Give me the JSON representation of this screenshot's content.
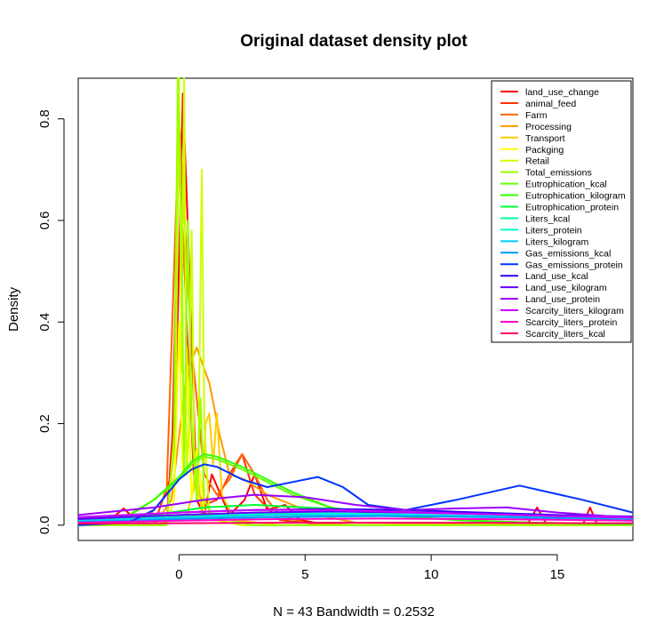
{
  "chart_data": {
    "type": "line",
    "title": "Original dataset density plot",
    "xlabel": "N = 43   Bandwidth = 0.2532",
    "ylabel": "Density",
    "xlim": [
      -4,
      18
    ],
    "ylim": [
      -0.03,
      0.88
    ],
    "x_ticks": [
      0,
      5,
      10,
      15
    ],
    "y_ticks": [
      0.0,
      0.2,
      0.4,
      0.6,
      0.8
    ],
    "x_tick_labels": [
      "0",
      "5",
      "10",
      "15"
    ],
    "y_tick_labels": [
      "0.0",
      "0.2",
      "0.4",
      "0.6",
      "0.8"
    ],
    "legend_position": "top-right",
    "grid": false,
    "series": [
      {
        "name": "land_use_change",
        "color": "#FF0000",
        "x": [
          -3,
          -2.2,
          -1.5,
          -0.5,
          -0.1,
          0.15,
          0.45,
          0.7,
          1.0,
          1.3,
          2.0,
          2.6,
          3.0,
          3.5,
          4.2,
          4.8,
          6,
          8,
          10,
          12,
          13.8,
          14.2,
          14.6,
          15.5,
          16,
          16.3,
          16.6,
          17,
          18
        ],
        "y": [
          0.0,
          0.033,
          0.0,
          0.0,
          0.3,
          0.85,
          0.45,
          0.05,
          0.02,
          0.1,
          0.02,
          0.05,
          0.1,
          0.03,
          0.04,
          0.01,
          0.0,
          0.0,
          0.0,
          0.0,
          0.0,
          0.035,
          0.0,
          0.0,
          0.0,
          0.035,
          0.0,
          0.0,
          0.0
        ]
      },
      {
        "name": "animal_feed",
        "color": "#FF3300",
        "x": [
          -4,
          -1,
          -0.3,
          0.0,
          0.3,
          0.6,
          1.0,
          1.5,
          2.0,
          2.5,
          3.0,
          4.0,
          6,
          10,
          18
        ],
        "y": [
          0.0,
          0.0,
          0.1,
          0.76,
          0.4,
          0.08,
          0.04,
          0.05,
          0.1,
          0.14,
          0.06,
          0.01,
          0.0,
          0.0,
          0.0
        ]
      },
      {
        "name": "Farm",
        "color": "#FF6600",
        "x": [
          -4,
          -1.5,
          -0.5,
          0.0,
          0.5,
          1.0,
          1.5,
          2.0,
          2.5,
          3.0,
          3.5,
          4.0,
          5,
          7,
          18
        ],
        "y": [
          0.0,
          0.0,
          0.06,
          0.8,
          0.35,
          0.1,
          0.06,
          0.09,
          0.14,
          0.1,
          0.05,
          0.02,
          0.005,
          0.0,
          0.0
        ]
      },
      {
        "name": "Processing",
        "color": "#FF9900",
        "x": [
          -4,
          -1,
          -0.3,
          0.3,
          0.7,
          1.2,
          1.6,
          2.0,
          2.6,
          3.5,
          4.5,
          5.5,
          7,
          18
        ],
        "y": [
          0.0,
          0.0,
          0.05,
          0.3,
          0.35,
          0.28,
          0.18,
          0.1,
          0.09,
          0.06,
          0.04,
          0.02,
          0.005,
          0.0
        ]
      },
      {
        "name": "Transport",
        "color": "#FFCC00",
        "x": [
          -4,
          -1,
          0.3,
          0.75,
          0.9,
          1.05,
          1.2,
          1.35,
          1.5,
          1.7,
          2.2,
          4,
          18
        ],
        "y": [
          0.0,
          0.0,
          0.02,
          0.1,
          0.02,
          0.2,
          0.22,
          0.12,
          0.22,
          0.06,
          0.01,
          0.0,
          0.0
        ]
      },
      {
        "name": "Packging",
        "color": "#FFFF00",
        "x": [
          -4,
          -0.5,
          -0.2,
          0.0,
          0.15,
          0.3,
          0.5,
          0.7,
          1.0,
          1.5,
          2.5,
          18
        ],
        "y": [
          0.0,
          0.0,
          0.05,
          0.4,
          0.1,
          0.35,
          0.05,
          0.15,
          0.03,
          0.01,
          0.0,
          0.0
        ]
      },
      {
        "name": "Retail",
        "color": "#CCFF00",
        "x": [
          -4,
          -0.5,
          -0.15,
          0.0,
          0.1,
          0.2,
          0.3,
          0.4,
          0.5,
          0.6,
          0.75,
          0.9,
          1.0,
          1.2,
          1.5,
          2.5,
          18
        ],
        "y": [
          0.0,
          0.0,
          0.2,
          0.88,
          0.3,
          0.88,
          0.1,
          0.2,
          0.58,
          0.15,
          0.05,
          0.7,
          0.2,
          0.02,
          0.01,
          0.0,
          0.0
        ]
      },
      {
        "name": "Total_emissions",
        "color": "#99FF00",
        "x": [
          -4,
          -0.5,
          -0.2,
          -0.05,
          0.1,
          0.2,
          0.35,
          0.5,
          0.7,
          0.85,
          1.0,
          1.3,
          2.0,
          3.0,
          18
        ],
        "y": [
          0.0,
          0.0,
          0.15,
          0.88,
          0.6,
          0.1,
          0.6,
          0.2,
          0.05,
          0.25,
          0.05,
          0.02,
          0.01,
          0.0,
          0.0
        ]
      },
      {
        "name": "Eutrophication_kcal",
        "color": "#66FF00",
        "x": [
          -4,
          -2,
          -1,
          0,
          0.5,
          1.0,
          1.5,
          2.5,
          3.5,
          4.5,
          6,
          8,
          11,
          14,
          18
        ],
        "y": [
          0.005,
          0.02,
          0.05,
          0.09,
          0.12,
          0.135,
          0.13,
          0.11,
          0.085,
          0.06,
          0.035,
          0.02,
          0.01,
          0.005,
          0.002
        ]
      },
      {
        "name": "Eutrophication_kilogram",
        "color": "#33FF00",
        "x": [
          -4,
          -2,
          -1,
          0,
          0.5,
          1.0,
          1.5,
          2.5,
          3.5,
          4.5,
          6,
          8,
          11,
          14,
          18
        ],
        "y": [
          0.003,
          0.018,
          0.05,
          0.095,
          0.125,
          0.14,
          0.135,
          0.115,
          0.09,
          0.065,
          0.035,
          0.02,
          0.01,
          0.005,
          0.002
        ]
      },
      {
        "name": "Eutrophication_protein",
        "color": "#00FF33",
        "x": [
          -4,
          -1,
          1,
          3,
          5,
          7,
          10,
          13,
          16,
          18
        ],
        "y": [
          0.005,
          0.02,
          0.035,
          0.04,
          0.035,
          0.03,
          0.025,
          0.02,
          0.015,
          0.012
        ]
      },
      {
        "name": "Liters_kcal",
        "color": "#00FF99",
        "x": [
          -4,
          0,
          4,
          8,
          12,
          16,
          18
        ],
        "y": [
          0.01,
          0.018,
          0.022,
          0.02,
          0.017,
          0.014,
          0.012
        ]
      },
      {
        "name": "Liters_protein",
        "color": "#00FFCC",
        "x": [
          -4,
          0,
          4,
          8,
          12,
          16,
          18
        ],
        "y": [
          0.012,
          0.02,
          0.025,
          0.022,
          0.018,
          0.015,
          0.013
        ]
      },
      {
        "name": "Liters_kilogram",
        "color": "#00CCFF",
        "x": [
          -4,
          0,
          4,
          8,
          12,
          16,
          18
        ],
        "y": [
          0.008,
          0.015,
          0.02,
          0.02,
          0.018,
          0.015,
          0.013
        ]
      },
      {
        "name": "Gas_emissions_kcal",
        "color": "#0099FF",
        "x": [
          -4,
          0,
          4,
          8,
          12,
          16,
          18
        ],
        "y": [
          0.006,
          0.012,
          0.016,
          0.018,
          0.016,
          0.013,
          0.011
        ]
      },
      {
        "name": "Gas_emissions_protein",
        "color": "#0033FF",
        "x": [
          -4,
          -2,
          -1,
          0,
          0.5,
          1.0,
          1.5,
          2.5,
          3.5,
          4.5,
          5.5,
          6.5,
          7.5,
          9,
          11,
          13.5,
          16,
          18
        ],
        "y": [
          0.0,
          0.005,
          0.03,
          0.09,
          0.11,
          0.12,
          0.115,
          0.09,
          0.075,
          0.085,
          0.095,
          0.075,
          0.04,
          0.03,
          0.05,
          0.078,
          0.05,
          0.025
        ]
      },
      {
        "name": "Land_use_kcal",
        "color": "#3300FF",
        "x": [
          -4,
          0,
          3,
          6,
          9,
          12,
          15,
          18
        ],
        "y": [
          0.015,
          0.025,
          0.03,
          0.032,
          0.03,
          0.025,
          0.02,
          0.017
        ]
      },
      {
        "name": "Land_use_kilogram",
        "color": "#6600FF",
        "x": [
          -4,
          0,
          3,
          6,
          9,
          12,
          15,
          18
        ],
        "y": [
          0.012,
          0.02,
          0.025,
          0.027,
          0.025,
          0.022,
          0.018,
          0.015
        ]
      },
      {
        "name": "Land_use_protein",
        "color": "#9900FF",
        "x": [
          -4,
          -1,
          1,
          3,
          5,
          7,
          9,
          11,
          13,
          15,
          17,
          18
        ],
        "y": [
          0.02,
          0.035,
          0.05,
          0.06,
          0.055,
          0.04,
          0.03,
          0.033,
          0.035,
          0.025,
          0.018,
          0.015
        ]
      },
      {
        "name": "Scarcity_liters_kilogram",
        "color": "#CC00FF",
        "x": [
          -4,
          0,
          3,
          6,
          9,
          12,
          15,
          18
        ],
        "y": [
          0.016,
          0.025,
          0.03,
          0.03,
          0.026,
          0.022,
          0.018,
          0.015
        ]
      },
      {
        "name": "Scarcity_liters_protein",
        "color": "#FF00CC",
        "x": [
          -4,
          0,
          4,
          8,
          12,
          16,
          18
        ],
        "y": [
          0.005,
          0.009,
          0.012,
          0.013,
          0.012,
          0.01,
          0.009
        ]
      },
      {
        "name": "Scarcity_liters_kcal",
        "color": "#FF0066",
        "x": [
          -4,
          0,
          4,
          8,
          12,
          16,
          18
        ],
        "y": [
          0.003,
          0.004,
          0.005,
          0.005,
          0.005,
          0.004,
          0.004
        ]
      }
    ]
  }
}
